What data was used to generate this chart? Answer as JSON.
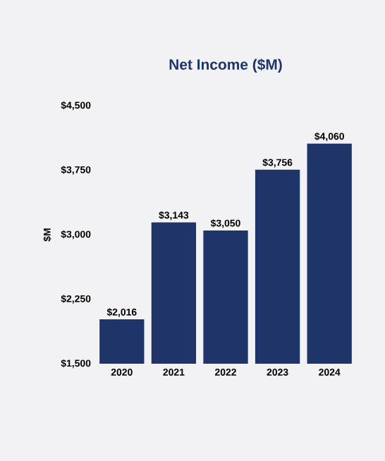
{
  "chart_data": {
    "type": "bar",
    "title": "Net Income ($M)",
    "ylabel": "$M",
    "categories": [
      "2020",
      "2021",
      "2022",
      "2023",
      "2024"
    ],
    "values": [
      2016,
      3143,
      3050,
      3756,
      4060
    ],
    "value_labels": [
      "$2,016",
      "$3,143",
      "$3,050",
      "$3,756",
      "$4,060"
    ],
    "color": "#1f3468",
    "ylim": [
      1500,
      4500
    ],
    "yticks": [
      {
        "value": 1500,
        "label": "$1,500"
      },
      {
        "value": 2250,
        "label": "$2,250"
      },
      {
        "value": 3000,
        "label": "$3,000"
      },
      {
        "value": 3750,
        "label": "$3,750"
      },
      {
        "value": 4500,
        "label": "$4,500"
      }
    ]
  }
}
